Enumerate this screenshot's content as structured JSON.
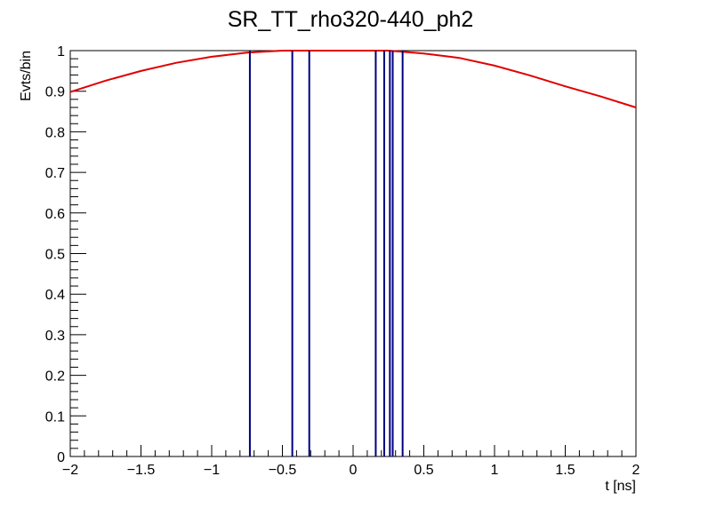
{
  "chart_data": {
    "type": "line",
    "title": "SR_TT_rho320-440_ph2",
    "xlabel": "t [ns]",
    "ylabel": "Evts/bin",
    "xlim": [
      -2,
      2
    ],
    "ylim": [
      0,
      1
    ],
    "grid": false,
    "legend": "none",
    "x_ticks": [
      -2,
      -1.5,
      -1,
      -0.5,
      0,
      0.5,
      1,
      1.5,
      2
    ],
    "x_tick_labels": [
      "−2",
      "−1.5",
      "−1",
      "−0.5",
      "0",
      "0.5",
      "1",
      "1.5",
      "2"
    ],
    "y_ticks": [
      0,
      0.1,
      0.2,
      0.3,
      0.4,
      0.5,
      0.6,
      0.7,
      0.8,
      0.9,
      1
    ],
    "y_tick_labels": [
      "0",
      "0.1",
      "0.2",
      "0.3",
      "0.4",
      "0.5",
      "0.6",
      "0.7",
      "0.8",
      "0.9",
      "1"
    ],
    "series": [
      {
        "color": "#e00000",
        "kind": "curve",
        "x": [
          -2.0,
          -1.75,
          -1.5,
          -1.25,
          -1.0,
          -0.75,
          -0.5,
          -0.25,
          0.0,
          0.25,
          0.5,
          0.75,
          1.0,
          1.25,
          1.5,
          1.75,
          2.0
        ],
        "y": [
          0.898,
          0.926,
          0.95,
          0.97,
          0.985,
          0.995,
          1.0,
          1.0,
          1.0,
          1.0,
          0.993,
          0.982,
          0.963,
          0.939,
          0.912,
          0.887,
          0.86
        ]
      },
      {
        "color": "#00007f",
        "kind": "histogram-spikes",
        "x": [
          -0.73,
          -0.43,
          -0.31,
          0.16,
          0.22,
          0.26,
          0.28,
          0.35
        ],
        "y": [
          1,
          1,
          1,
          1,
          1,
          1,
          1,
          1
        ]
      }
    ]
  }
}
